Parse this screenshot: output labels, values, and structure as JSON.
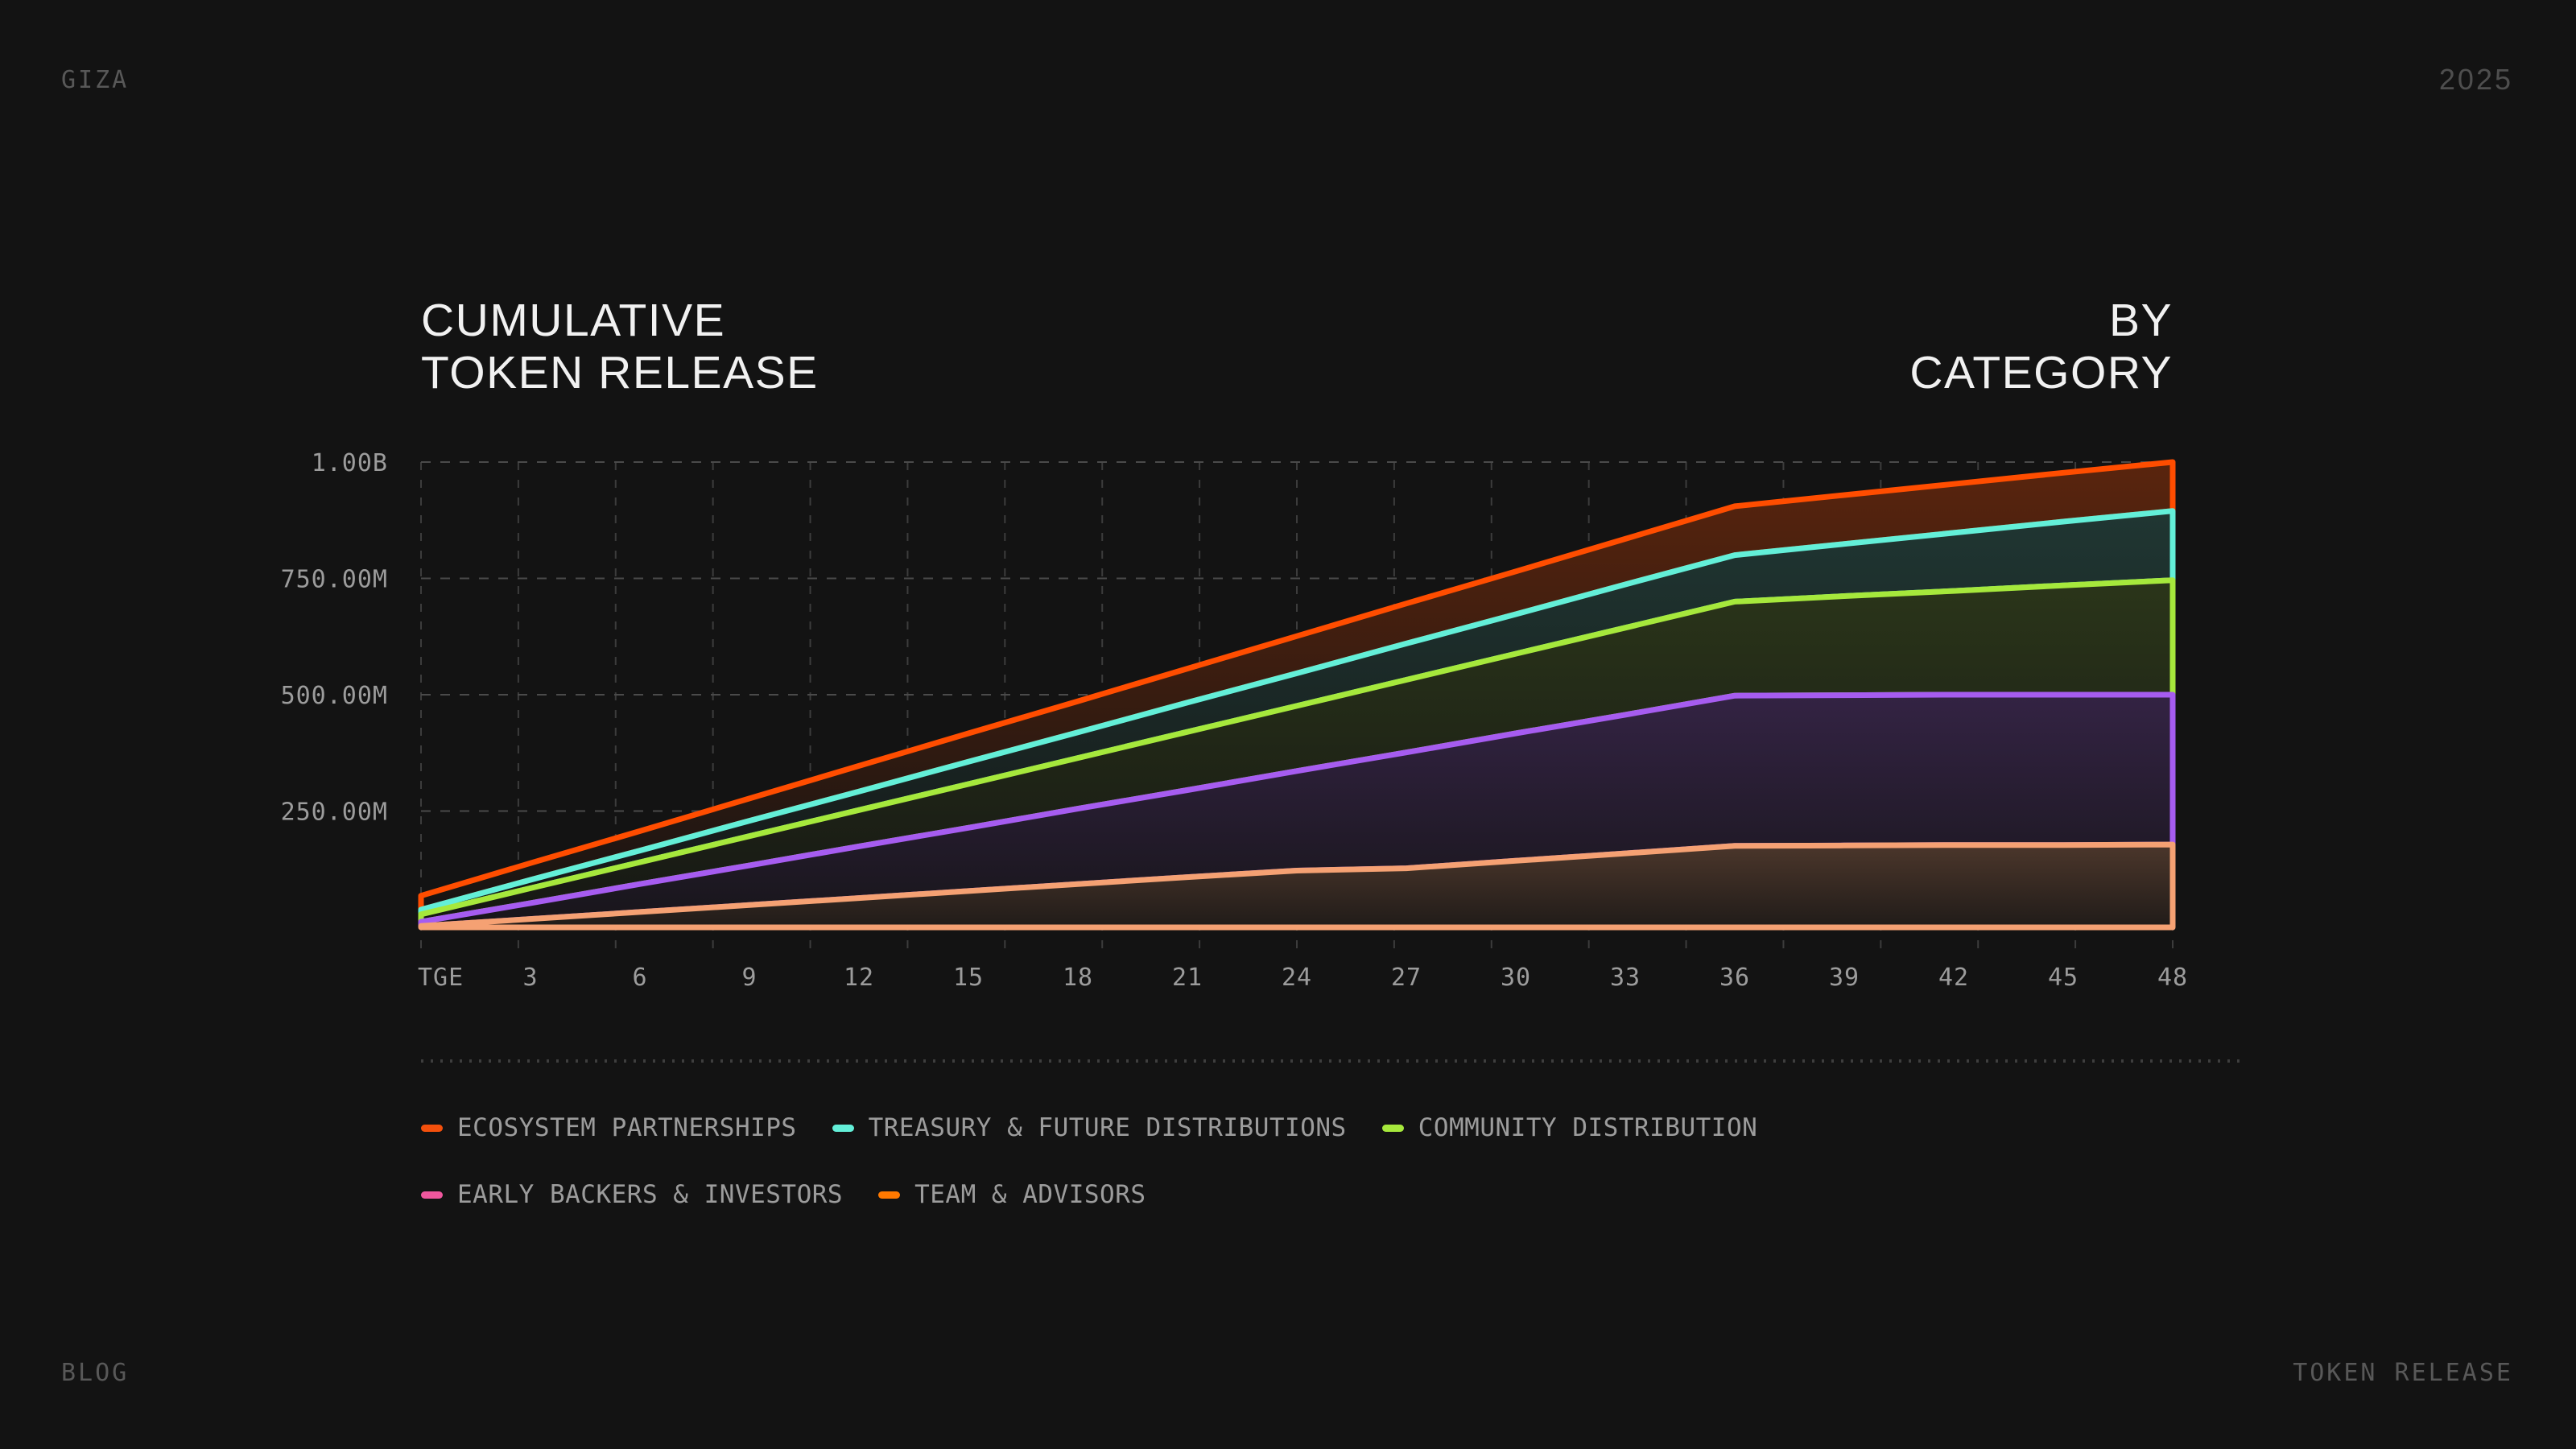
{
  "header": {
    "brand": "GIZA",
    "year": "2025"
  },
  "footer": {
    "left": "BLOG",
    "right": "TOKEN RELEASE"
  },
  "title": {
    "left": "CUMULATIVE\nTOKEN RELEASE",
    "right": "BY\nCATEGORY"
  },
  "colors": {
    "background": "#131313",
    "title_text": "#F1F1F1",
    "axis_text": "#9C9C9C",
    "muted_text": "#585858",
    "grid_horizontal": "#4A4A4A",
    "grid_vertical": "#3C3C3C",
    "divider": "#3E3E3E"
  },
  "chart_data": {
    "type": "area",
    "stacked": true,
    "title": "Cumulative Token Release by Category",
    "unit": "tokens (millions), cumulative",
    "x_tick_labels": [
      "TGE",
      "3",
      "6",
      "9",
      "12",
      "15",
      "18",
      "21",
      "24",
      "27",
      "30",
      "33",
      "36",
      "39",
      "42",
      "45",
      "48"
    ],
    "x_months": [
      0,
      3,
      6,
      9,
      12,
      15,
      18,
      21,
      24,
      27,
      30,
      33,
      36,
      39,
      42,
      45,
      48
    ],
    "y_ticks": [
      {
        "value": 1000,
        "label": "1.00B"
      },
      {
        "value": 750,
        "label": "750.00M"
      },
      {
        "value": 500,
        "label": "500.00M"
      },
      {
        "value": 250,
        "label": "250.00M"
      }
    ],
    "ylim": [
      0,
      1000
    ],
    "grid": true,
    "legend_position": "bottom-left",
    "series": [
      {
        "name": "ECOSYSTEM PARTNERSHIPS",
        "slug": "ecosystem-partnerships",
        "line_color": "#FF4D00",
        "legend_color": "#F4500C",
        "fill_opacity_top": 0.3,
        "fill_opacity_bottom": 0.02,
        "legend_row": 0,
        "cumulative_millions": [
          68,
          138,
          207,
          277,
          347,
          417,
          486,
          556,
          626,
          696,
          765,
          835,
          905,
          929,
          953,
          977,
          1000
        ]
      },
      {
        "name": "TREASURY & FUTURE DISTRIBUTIONS",
        "slug": "treasury-future-distributions",
        "line_color": "#63EFD8",
        "legend_color": "#63EFD8",
        "fill_opacity_top": 0.16,
        "fill_opacity_bottom": 0.02,
        "legend_row": 0,
        "cumulative_millions": [
          38,
          102,
          165,
          229,
          292,
          356,
          419,
          483,
          546,
          610,
          673,
          737,
          800,
          824,
          848,
          872,
          895
        ]
      },
      {
        "name": "COMMUNITY DISTRIBUTION",
        "slug": "community-distribution",
        "line_color": "#A6E83C",
        "legend_color": "#A6E83C",
        "fill_opacity_top": 0.16,
        "fill_opacity_bottom": 0.02,
        "legend_row": 0,
        "cumulative_millions": [
          28,
          84,
          140,
          196,
          252,
          308,
          364,
          420,
          476,
          532,
          588,
          644,
          700,
          712,
          723,
          735,
          746
        ]
      },
      {
        "name": "EARLY BACKERS & INVESTORS",
        "slug": "early-backers-investors",
        "line_color": "#A65CF0",
        "legend_color": "#F0579E",
        "fill_opacity_top": 0.22,
        "fill_opacity_bottom": 0.03,
        "legend_row": 1,
        "cumulative_millions": [
          12,
          52,
          93,
          133,
          174,
          214,
          255,
          295,
          336,
          376,
          417,
          457,
          498,
          499,
          500,
          500,
          500
        ]
      },
      {
        "name": "TEAM & ADVISORS",
        "slug": "team-advisors",
        "line_color": "#F5A173",
        "legend_color": "#FF7900",
        "fill_opacity_top": 0.25,
        "fill_opacity_bottom": 0.06,
        "legend_row": 1,
        "cumulative_millions": [
          3,
          18,
          33,
          48,
          63,
          78,
          93,
          108,
          122,
          127,
          143,
          159,
          175,
          176,
          177,
          177,
          178
        ]
      }
    ]
  }
}
